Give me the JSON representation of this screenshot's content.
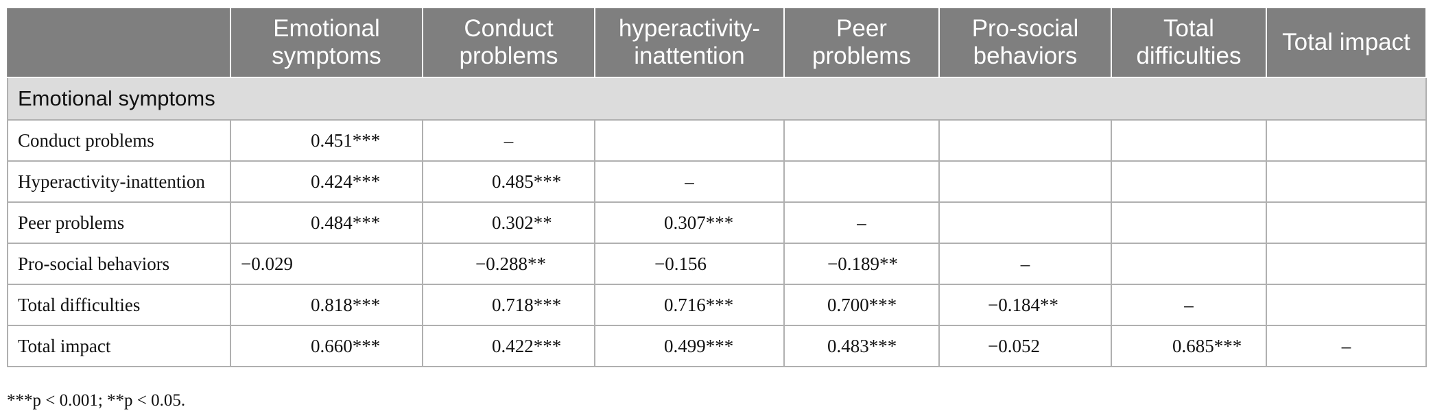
{
  "table": {
    "columns": [
      "",
      "Emotional symptoms",
      "Conduct problems",
      "hyperactivity-inattention",
      "Peer problems",
      "Pro-social behaviors",
      "Total difficulties",
      "Total impact"
    ],
    "section_label": "Emotional symptoms",
    "rows": [
      {
        "label": "Conduct problems",
        "cells": [
          "0.451***",
          "–",
          "",
          "",
          "",
          "",
          ""
        ]
      },
      {
        "label": "Hyperactivity-inattention",
        "cells": [
          "0.424***",
          "0.485***",
          "–",
          "",
          "",
          "",
          ""
        ]
      },
      {
        "label": "Peer problems",
        "cells": [
          "0.484***",
          "0.302**",
          "0.307***",
          "–",
          "",
          "",
          ""
        ]
      },
      {
        "label": "Pro-social behaviors",
        "cells": [
          "−0.029",
          "−0.288**",
          "−0.156",
          "−0.189**",
          "–",
          "",
          ""
        ]
      },
      {
        "label": "Total difficulties",
        "cells": [
          "0.818***",
          "0.718***",
          "0.716***",
          "0.700***",
          "−0.184**",
          "–",
          ""
        ]
      },
      {
        "label": "Total impact",
        "cells": [
          "0.660***",
          "0.422***",
          "0.499***",
          "0.483***",
          "−0.052",
          "0.685***",
          "–"
        ]
      }
    ]
  },
  "footnote": "***p < 0.001; **p < 0.05."
}
